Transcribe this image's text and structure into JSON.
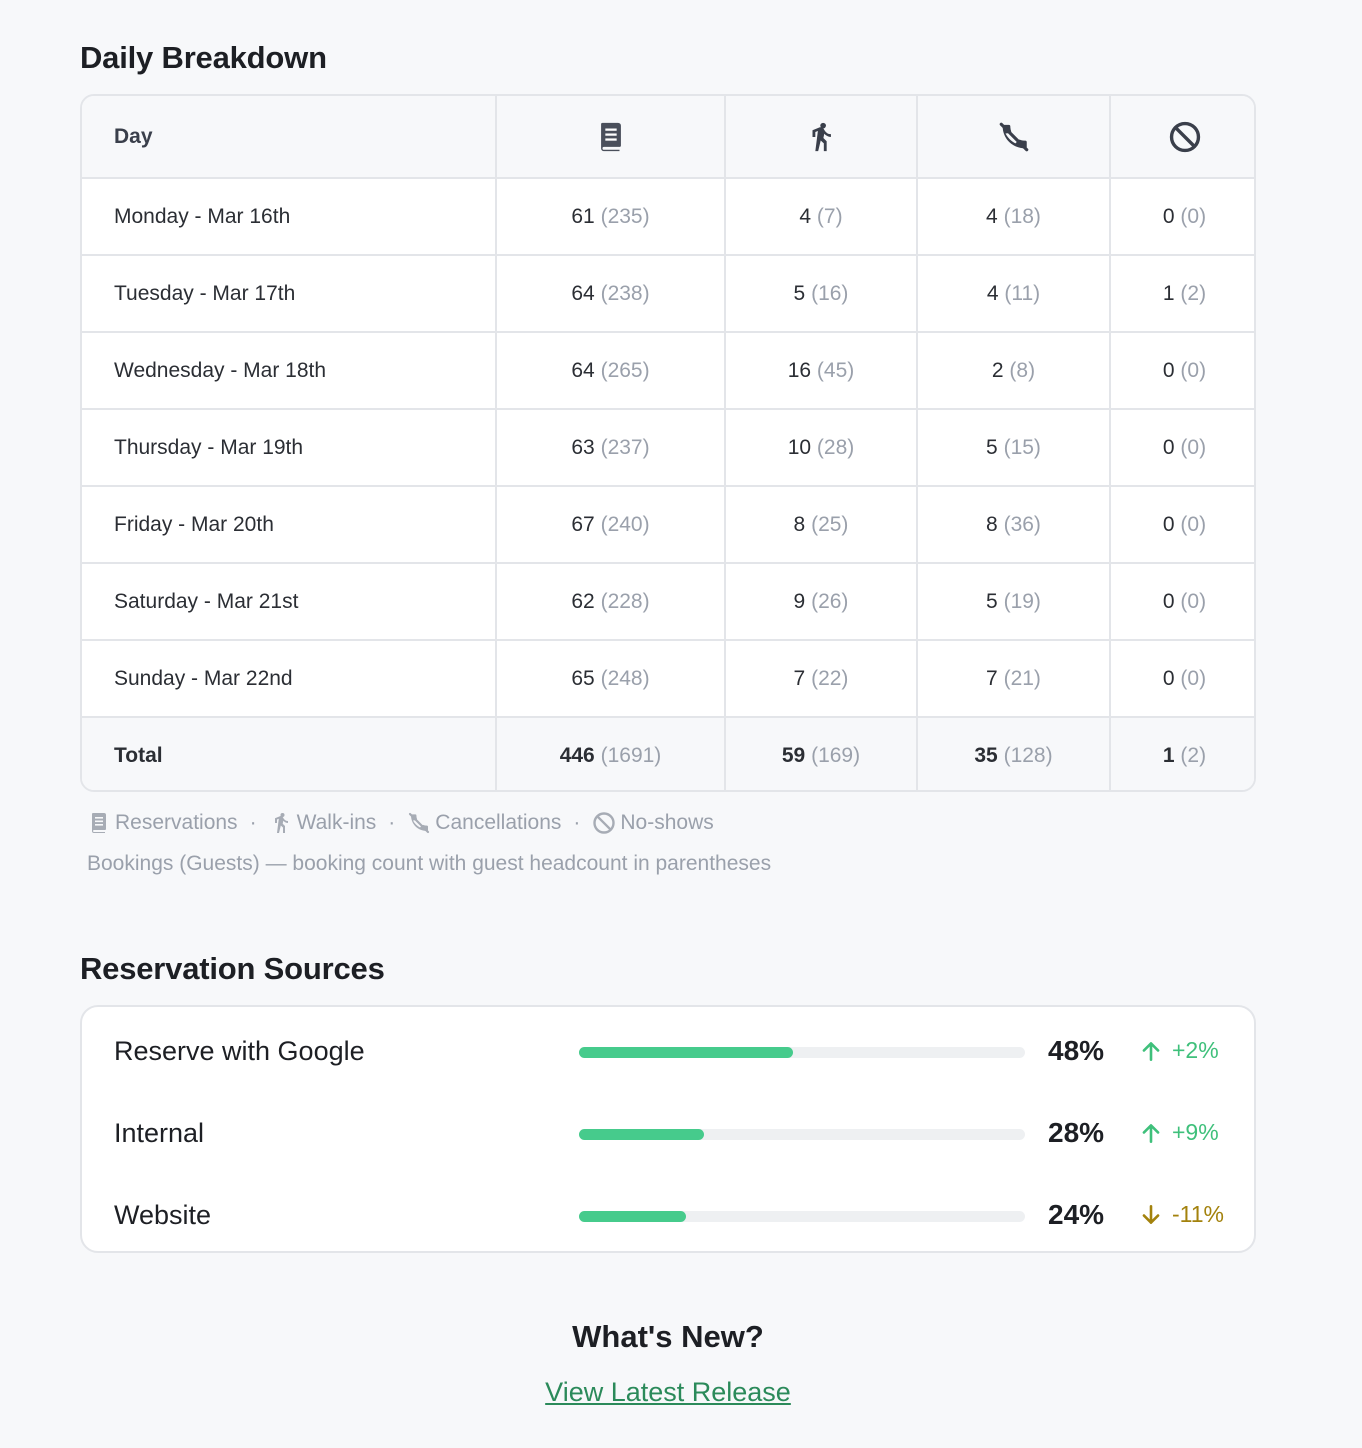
{
  "breakdown": {
    "title": "Daily Breakdown",
    "day_header": "Day",
    "columns": [
      {
        "icon": "reservations-book-icon"
      },
      {
        "icon": "walk-in-person-icon"
      },
      {
        "icon": "cancellation-phone-icon"
      },
      {
        "icon": "no-show-prohibited-icon"
      }
    ],
    "rows": [
      {
        "day": "Monday - Mar 16th",
        "cells": [
          {
            "count": "61",
            "guests": "(235)"
          },
          {
            "count": "4",
            "guests": "(7)"
          },
          {
            "count": "4",
            "guests": "(18)"
          },
          {
            "count": "0",
            "guests": "(0)"
          }
        ]
      },
      {
        "day": "Tuesday - Mar 17th",
        "cells": [
          {
            "count": "64",
            "guests": "(238)"
          },
          {
            "count": "5",
            "guests": "(16)"
          },
          {
            "count": "4",
            "guests": "(11)"
          },
          {
            "count": "1",
            "guests": "(2)"
          }
        ]
      },
      {
        "day": "Wednesday - Mar 18th",
        "cells": [
          {
            "count": "64",
            "guests": "(265)"
          },
          {
            "count": "16",
            "guests": "(45)"
          },
          {
            "count": "2",
            "guests": "(8)"
          },
          {
            "count": "0",
            "guests": "(0)"
          }
        ]
      },
      {
        "day": "Thursday - Mar 19th",
        "cells": [
          {
            "count": "63",
            "guests": "(237)"
          },
          {
            "count": "10",
            "guests": "(28)"
          },
          {
            "count": "5",
            "guests": "(15)"
          },
          {
            "count": "0",
            "guests": "(0)"
          }
        ]
      },
      {
        "day": "Friday - Mar 20th",
        "cells": [
          {
            "count": "67",
            "guests": "(240)"
          },
          {
            "count": "8",
            "guests": "(25)"
          },
          {
            "count": "8",
            "guests": "(36)"
          },
          {
            "count": "0",
            "guests": "(0)"
          }
        ]
      },
      {
        "day": "Saturday - Mar 21st",
        "cells": [
          {
            "count": "62",
            "guests": "(228)"
          },
          {
            "count": "9",
            "guests": "(26)"
          },
          {
            "count": "5",
            "guests": "(19)"
          },
          {
            "count": "0",
            "guests": "(0)"
          }
        ]
      },
      {
        "day": "Sunday - Mar 22nd",
        "cells": [
          {
            "count": "65",
            "guests": "(248)"
          },
          {
            "count": "7",
            "guests": "(22)"
          },
          {
            "count": "7",
            "guests": "(21)"
          },
          {
            "count": "0",
            "guests": "(0)"
          }
        ]
      }
    ],
    "total": {
      "label": "Total",
      "cells": [
        {
          "count": "446",
          "guests": "(1691)"
        },
        {
          "count": "59",
          "guests": "(169)"
        },
        {
          "count": "35",
          "guests": "(128)"
        },
        {
          "count": "1",
          "guests": "(2)"
        }
      ]
    },
    "legend": {
      "items": [
        "Reservations",
        "Walk-ins",
        "Cancellations",
        "No-shows"
      ],
      "separator": "·",
      "note": "Bookings (Guests) — booking count with guest headcount in parentheses"
    }
  },
  "sources": {
    "title": "Reservation Sources",
    "rows": [
      {
        "name": "Reserve with Google",
        "percent_label": "48%",
        "share": 0.48,
        "change": "+2%",
        "direction": "up"
      },
      {
        "name": "Internal",
        "percent_label": "28%",
        "share": 0.28,
        "change": "+9%",
        "direction": "up"
      },
      {
        "name": "Website",
        "percent_label": "24%",
        "share": 0.24,
        "change": "-11%",
        "direction": "down"
      }
    ]
  },
  "whats_new": {
    "title": "What's New?",
    "link_label": "View Latest Release"
  },
  "colors": {
    "bar_fill": "#46cb8c",
    "trend_up": "#3fc07b",
    "trend_down": "#a3820d",
    "link": "#2b8a5a"
  }
}
